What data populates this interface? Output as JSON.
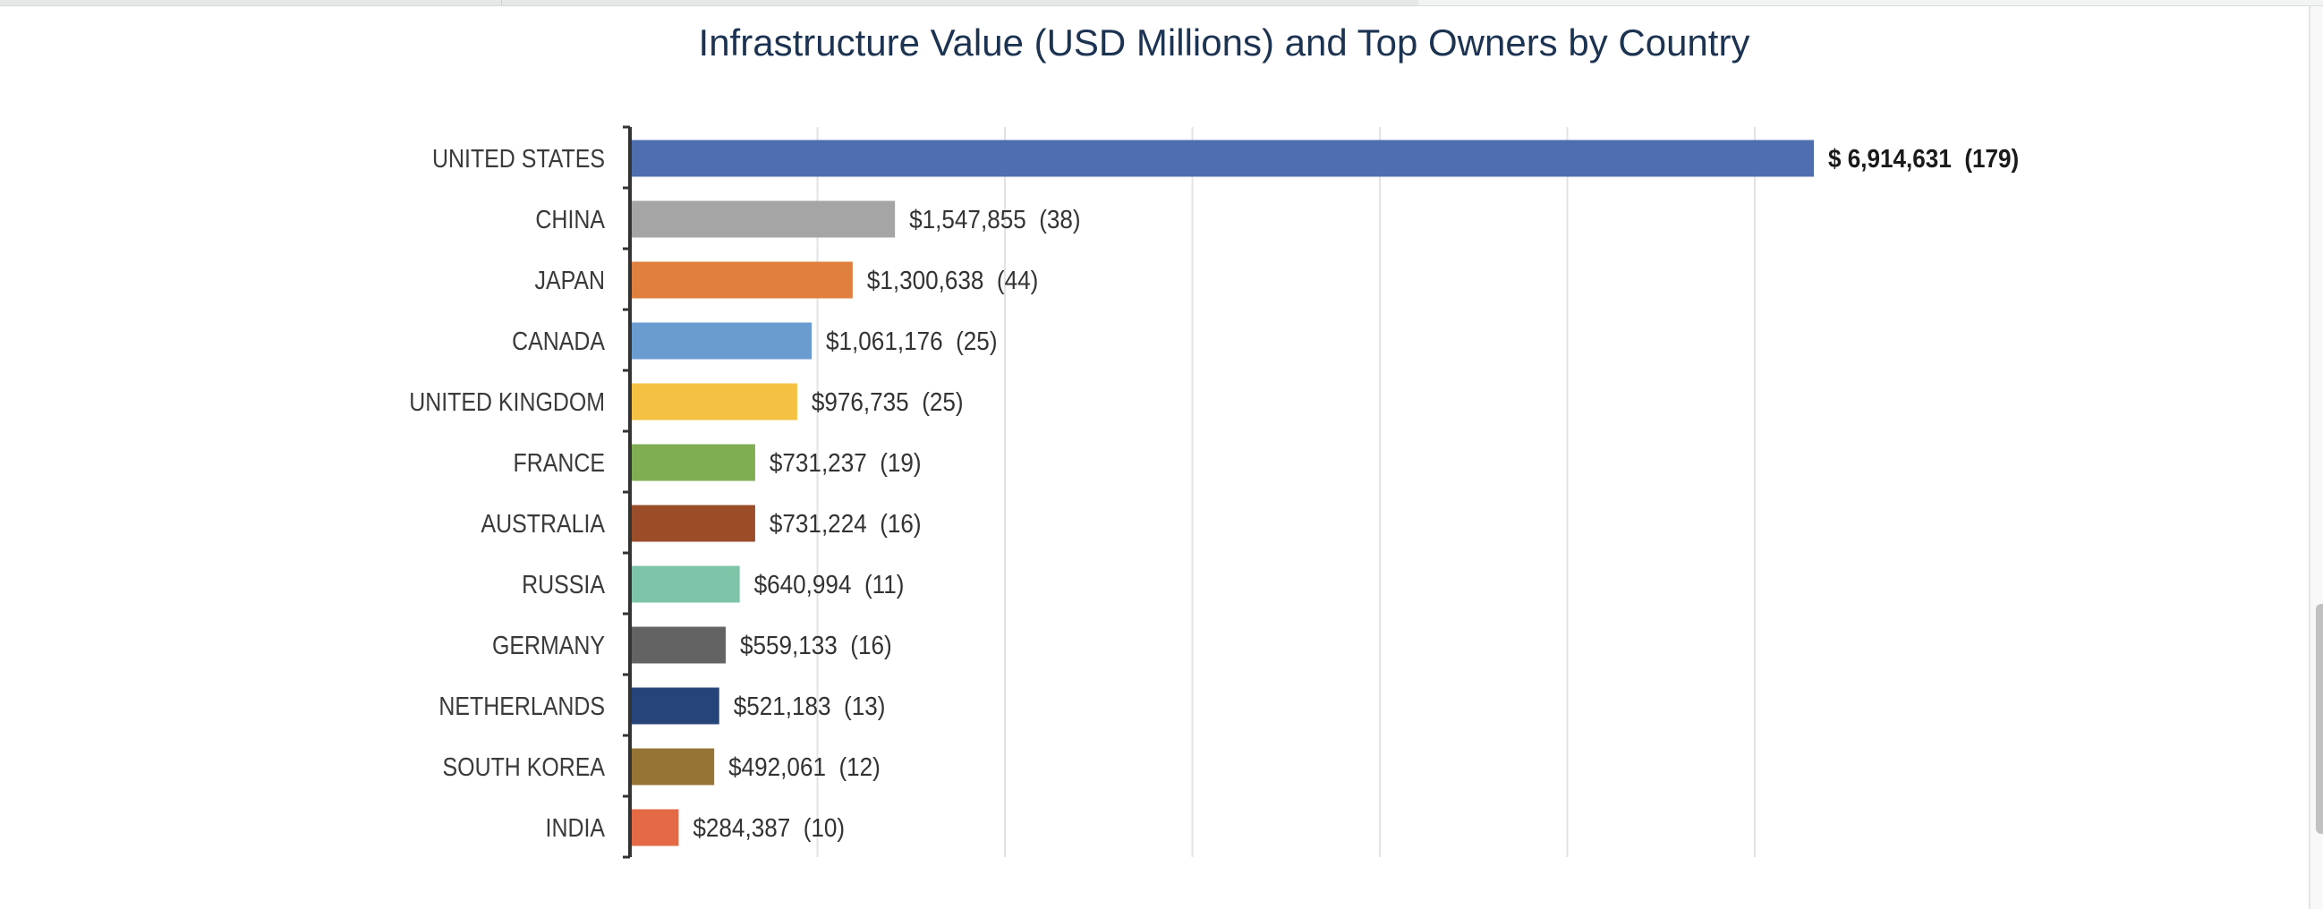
{
  "chart_data": {
    "type": "bar",
    "orientation": "horizontal",
    "title": "Infrastructure Value (USD Millions) and Top Owners by Country",
    "xlabel": "",
    "ylabel": "",
    "xlim": [
      0,
      7000000
    ],
    "grid": true,
    "legend": "none",
    "categories": [
      "UNITED STATES",
      "CHINA",
      "JAPAN",
      "CANADA",
      "UNITED KINGDOM",
      "FRANCE",
      "AUSTRALIA",
      "RUSSIA",
      "GERMANY",
      "NETHERLANDS",
      "SOUTH KOREA",
      "INDIA"
    ],
    "values": [
      6914631,
      1547855,
      1300638,
      1061176,
      976735,
      731237,
      731224,
      640994,
      559133,
      521183,
      492061,
      284387
    ],
    "owner_counts": [
      179,
      38,
      44,
      25,
      25,
      19,
      16,
      11,
      16,
      13,
      12,
      10
    ],
    "data_labels": [
      "$ 6,914,631  (179)",
      "$1,547,855  (38)",
      "$1,300,638  (44)",
      "$1,061,176  (25)",
      "$976,735  (25)",
      "$731,237  (19)",
      "$731,224  (16)",
      "$640,994  (11)",
      "$559,133  (16)",
      "$521,183  (13)",
      "$492,061  (12)",
      "$284,387  (10)"
    ],
    "colors": [
      "#4e6eb0",
      "#a5a5a5",
      "#e0803f",
      "#6a9bd1",
      "#f4c142",
      "#7ead52",
      "#9a4d28",
      "#7ec4a8",
      "#636363",
      "#26447a",
      "#967436",
      "#e46945"
    ],
    "highlight_index": 0
  }
}
